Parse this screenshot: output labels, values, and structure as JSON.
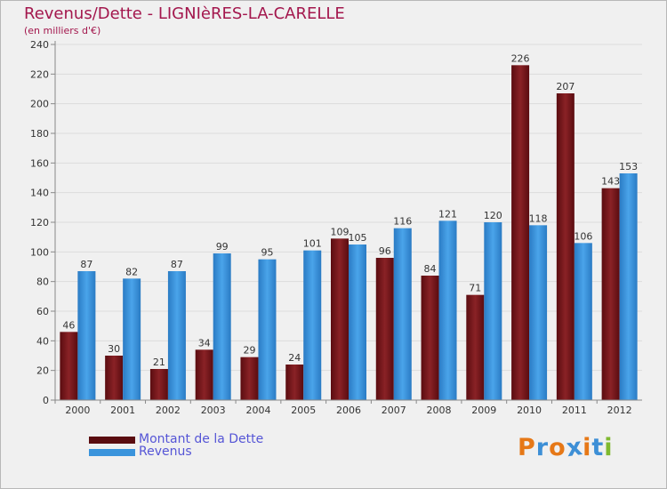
{
  "title": "Revenus/Dette - LIGNIèRES-LA-CARELLE",
  "subtitle": "(en milliers d'€)",
  "colors": {
    "dette": "#7a1519",
    "revenus": "#3a94dc",
    "title": "#a3174d",
    "legend_text": "#5555d6"
  },
  "chart_data": {
    "type": "bar",
    "categories": [
      "2000",
      "2001",
      "2002",
      "2003",
      "2004",
      "2005",
      "2006",
      "2007",
      "2008",
      "2009",
      "2010",
      "2011",
      "2012"
    ],
    "series": [
      {
        "name": "Montant de la Dette",
        "values": [
          46,
          30,
          21,
          34,
          29,
          24,
          109,
          96,
          84,
          71,
          226,
          207,
          143
        ]
      },
      {
        "name": "Revenus",
        "values": [
          87,
          82,
          87,
          99,
          95,
          101,
          105,
          116,
          121,
          120,
          118,
          106,
          153
        ]
      }
    ],
    "yticks": [
      0,
      20,
      40,
      60,
      80,
      100,
      120,
      140,
      160,
      180,
      200,
      220,
      240
    ],
    "ylim": [
      0,
      240
    ],
    "grid": true,
    "legend_position": "bottom-left"
  },
  "legend": {
    "dette_label": "Montant de la Dette",
    "revenus_label": "Revenus"
  },
  "logo": {
    "text": "Proxiti",
    "letter_colors": [
      "#e67817",
      "#3d8fd6",
      "#e67817",
      "#3d8fd6",
      "#e67817",
      "#3d8fd6",
      "#7fb92f"
    ]
  }
}
